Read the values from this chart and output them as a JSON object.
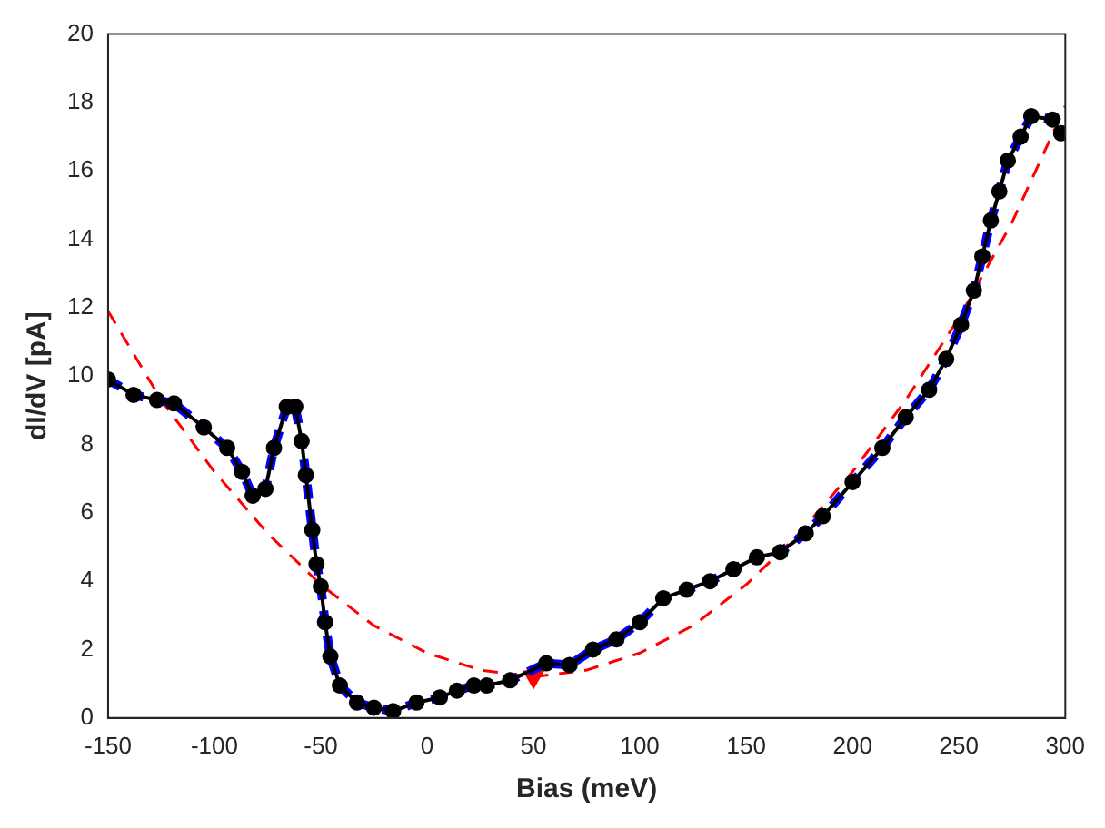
{
  "chart_data": {
    "type": "line",
    "xlabel": "Bias (meV)",
    "ylabel": "dI/dV [pA]",
    "x": [
      -150,
      -138,
      -127,
      -119,
      -105,
      -94,
      -87,
      -82,
      -76,
      -72,
      -66,
      -62,
      -59,
      -57,
      -54,
      -52,
      -50,
      -48,
      -45.5,
      -41,
      -33,
      -25,
      -16,
      -5,
      6,
      14,
      22,
      28,
      39,
      56,
      67,
      78,
      89,
      100,
      111,
      122,
      133,
      144,
      155,
      166,
      178,
      186,
      200,
      214,
      225,
      236,
      244,
      251,
      257,
      261,
      265,
      269,
      273,
      279,
      284,
      294,
      298
    ],
    "series": [
      {
        "color": "#000000",
        "marker": "circle",
        "line_style": "solid",
        "values": [
          9.9,
          9.45,
          9.3,
          9.2,
          8.5,
          7.9,
          7.2,
          6.5,
          6.7,
          7.9,
          9.1,
          9.1,
          8.1,
          7.1,
          5.5,
          4.5,
          3.85,
          2.8,
          1.8,
          0.95,
          0.45,
          0.3,
          0.2,
          0.45,
          0.6,
          0.8,
          0.95,
          0.95,
          1.1,
          1.6,
          1.55,
          2.0,
          2.3,
          2.8,
          3.5,
          3.75,
          4.0,
          4.35,
          4.7,
          4.85,
          5.4,
          5.9,
          6.9,
          7.9,
          8.8,
          9.6,
          10.5,
          11.5,
          12.5,
          13.5,
          14.55,
          15.4,
          16.3,
          17.0,
          17.6,
          17.5,
          17.1
        ]
      },
      {
        "color": "#0000ff",
        "marker": "none",
        "line_style": "dashed",
        "values": [
          9.9,
          9.45,
          9.3,
          9.2,
          8.5,
          7.9,
          7.2,
          6.5,
          6.7,
          7.9,
          9.1,
          9.1,
          8.1,
          7.1,
          5.5,
          4.5,
          3.85,
          2.8,
          1.8,
          0.95,
          0.45,
          0.3,
          0.2,
          0.45,
          0.6,
          0.8,
          0.95,
          0.95,
          1.1,
          1.6,
          1.55,
          2.0,
          2.3,
          2.8,
          3.5,
          3.75,
          4.0,
          4.35,
          4.7,
          4.85,
          5.4,
          5.9,
          6.9,
          7.9,
          8.8,
          9.6,
          10.5,
          11.5,
          12.5,
          13.5,
          14.55,
          15.4,
          16.3,
          17.0,
          17.6,
          17.5,
          17.1
        ]
      },
      {
        "color": "#ff0000",
        "marker": "none",
        "line_style": "dashed",
        "x": [
          -150,
          -125,
          -100,
          -75,
          -50,
          -25,
          0,
          25,
          50,
          75,
          100,
          125,
          150,
          175,
          200,
          225,
          250,
          275,
          300
        ],
        "values": [
          11.9,
          9.3,
          7.2,
          5.4,
          3.9,
          2.7,
          1.9,
          1.4,
          1.2,
          1.4,
          1.9,
          2.7,
          3.9,
          5.4,
          7.2,
          9.3,
          11.7,
          14.5,
          17.9
        ]
      },
      {
        "type": "scatter",
        "color": "#ff0000",
        "marker": "triangle",
        "x": [
          50
        ],
        "values": [
          1.2
        ]
      }
    ],
    "xlim": [
      -150,
      300
    ],
    "xticks": [
      -150,
      -100,
      -50,
      0,
      50,
      100,
      150,
      200,
      250,
      300
    ],
    "ylim": [
      0,
      20
    ],
    "yticks": [
      0,
      2,
      4,
      6,
      8,
      10,
      12,
      14,
      16,
      18,
      20
    ],
    "grid": false,
    "legend": false
  }
}
